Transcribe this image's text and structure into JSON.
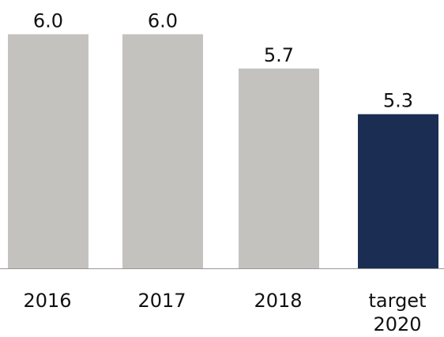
{
  "chart_data": {
    "type": "bar",
    "categories": [
      "2016",
      "2017",
      "2018",
      "target 2020"
    ],
    "values": [
      6.0,
      6.0,
      5.7,
      5.3
    ],
    "value_labels": [
      "6.0",
      "6.0",
      "5.7",
      "5.3"
    ],
    "colors": [
      "#c4c2bf",
      "#c4c2bf",
      "#c4c2bf",
      "#1b2d52"
    ],
    "ylim": [
      3.95,
      6.3
    ]
  }
}
